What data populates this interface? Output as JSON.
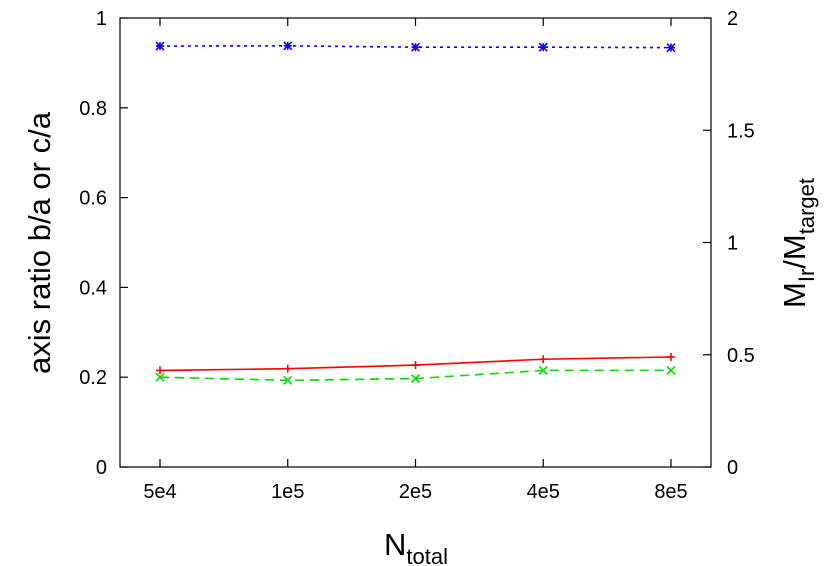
{
  "chart_data": {
    "type": "line",
    "title": "",
    "xlabel": {
      "main": "N",
      "sub": "total"
    },
    "ylabel": "axis ratio b/a or c/a",
    "y2label": {
      "main": "M",
      "sub1": "Ir",
      "sep": "/M",
      "sub2": "target"
    },
    "categories": [
      "5e4",
      "1e5",
      "2e5",
      "4e5",
      "8e5"
    ],
    "ylim": [
      0,
      1
    ],
    "y2lim": [
      0,
      2
    ],
    "yticks": [
      "0",
      "0.2",
      "0.4",
      "0.6",
      "0.8",
      "1"
    ],
    "y2ticks": [
      "0",
      "0.5",
      "1",
      "1.5",
      "2"
    ],
    "grid": false,
    "series": [
      {
        "values": [
          0.215,
          0.219,
          0.227,
          0.24,
          0.245
        ],
        "axis": "left",
        "color": "#ff0000",
        "dash": "solid",
        "marker": "plus"
      },
      {
        "values": [
          0.2,
          0.193,
          0.197,
          0.215,
          0.215
        ],
        "axis": "left",
        "color": "#00dd00",
        "dash": "dashed",
        "marker": "cross"
      },
      {
        "values": [
          1.875,
          1.876,
          1.87,
          1.87,
          1.868
        ],
        "axis": "right",
        "color": "#0000ff",
        "dash": "dotted",
        "marker": "star"
      }
    ]
  }
}
